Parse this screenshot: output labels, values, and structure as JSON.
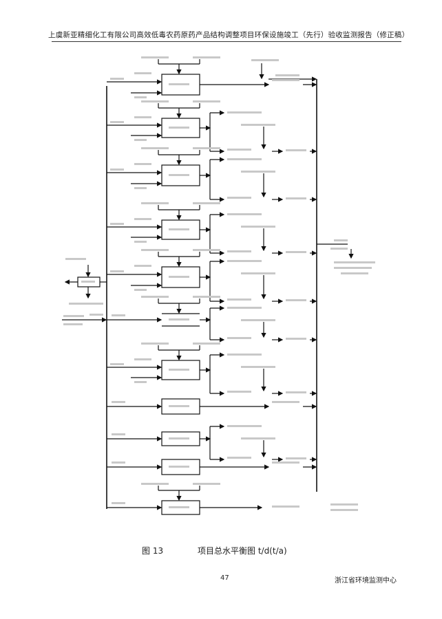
{
  "header": {
    "title": "上虞新亚精细化工有限公司高效低毒农药原药产品结构调整项目环保设施竣工（先行）验收监测报告（修正稿）"
  },
  "caption": {
    "figure_number": "图 13",
    "title": "项目总水平衡图 t/d(t/a)"
  },
  "footer": {
    "page_number": "47",
    "organization": "浙江省环境监测中心"
  }
}
